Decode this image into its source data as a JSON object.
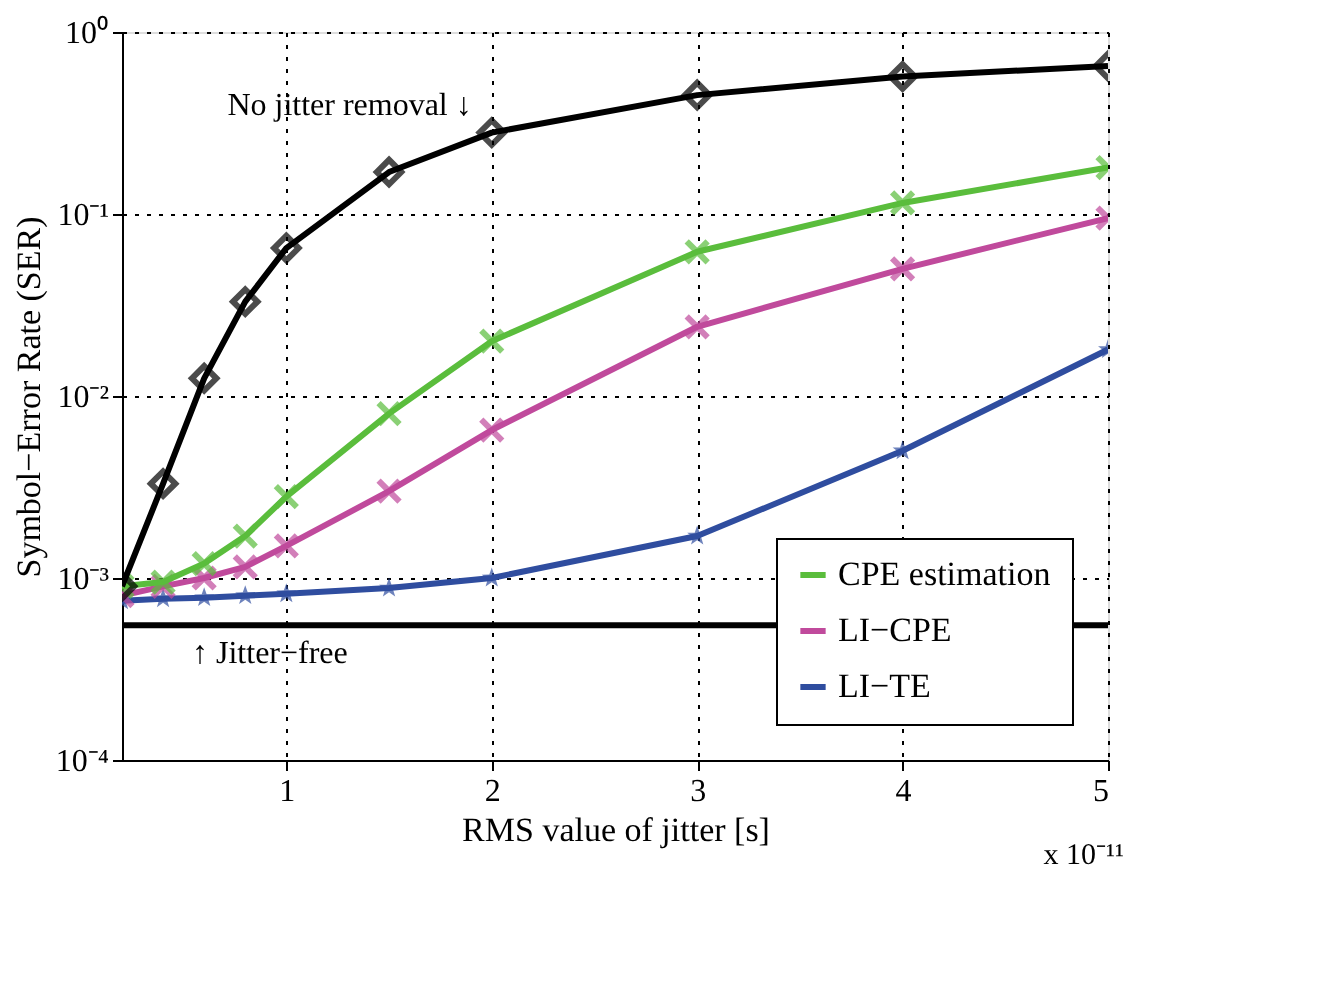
{
  "chart_data": {
    "type": "line",
    "xlabel": "RMS value of jitter [s]",
    "ylabel": "Symbol−Error Rate (SER)",
    "x": [
      0.2,
      0.4,
      0.6,
      0.8,
      1,
      1.5,
      2,
      3,
      4,
      5
    ],
    "series": [
      {
        "color": "#000000",
        "marker": "diamond",
        "values": [
          0.0009,
          0.0033,
          0.0125,
          0.033,
          0.065,
          0.17,
          0.28,
          0.45,
          0.57,
          0.65
        ]
      },
      {
        "name": "CPE estimation",
        "color": "#5abd3c",
        "marker": "cross",
        "values": [
          0.0009,
          0.00095,
          0.0012,
          0.0017,
          0.0028,
          0.008,
          0.02,
          0.062,
          0.115,
          0.18
        ]
      },
      {
        "name": "LI−CPE",
        "color": "#c04a9c",
        "marker": "cross",
        "values": [
          0.0008,
          0.0009,
          0.001,
          0.00115,
          0.0015,
          0.003,
          0.0065,
          0.024,
          0.05,
          0.095
        ]
      },
      {
        "name": "LI−TE",
        "color": "#2f4d9f",
        "marker": "star",
        "values": [
          0.00075,
          0.00077,
          0.00078,
          0.0008,
          0.00082,
          0.00088,
          0.001,
          0.0017,
          0.005,
          0.018
        ]
      }
    ],
    "log": "y",
    "xlim": [
      0.2,
      5
    ],
    "xticks": [
      1,
      2,
      3,
      4,
      5
    ],
    "ylim": [
      0.0001,
      1
    ],
    "yticks": [
      {
        "value": 0.0001,
        "label": "10⁻⁴"
      },
      {
        "value": 0.001,
        "label": "10⁻³"
      },
      {
        "value": 0.01,
        "label": "10⁻²"
      },
      {
        "value": 0.1,
        "label": "10⁻¹"
      },
      {
        "value": 1,
        "label": "10⁰"
      }
    ],
    "grid": true,
    "legend": "bottom right",
    "line_style": "solid",
    "ref_lines": [
      {
        "axis": "y",
        "value": 0.00055,
        "label": "↑ Jitter−free",
        "color": "#000000"
      }
    ],
    "annotations": [
      {
        "text": "No jitter removal ↓",
        "x": 2,
        "y": 0.28
      },
      "x 10⁻¹¹"
    ]
  }
}
